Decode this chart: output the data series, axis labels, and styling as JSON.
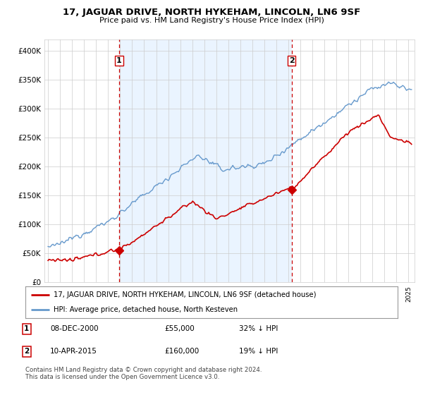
{
  "title": "17, JAGUAR DRIVE, NORTH HYKEHAM, LINCOLN, LN6 9SF",
  "subtitle": "Price paid vs. HM Land Registry's House Price Index (HPI)",
  "legend_line1": "17, JAGUAR DRIVE, NORTH HYKEHAM, LINCOLN, LN6 9SF (detached house)",
  "legend_line2": "HPI: Average price, detached house, North Kesteven",
  "annotation1": {
    "label": "1",
    "date": "08-DEC-2000",
    "price": "£55,000",
    "pct": "32% ↓ HPI"
  },
  "annotation2": {
    "label": "2",
    "date": "10-APR-2015",
    "price": "£160,000",
    "pct": "19% ↓ HPI"
  },
  "footer": "Contains HM Land Registry data © Crown copyright and database right 2024.\nThis data is licensed under the Open Government Licence v3.0.",
  "ylim": [
    0,
    420000
  ],
  "yticks": [
    0,
    50000,
    100000,
    150000,
    200000,
    250000,
    300000,
    350000,
    400000
  ],
  "property_color": "#cc0000",
  "hpi_color": "#6699cc",
  "hpi_fill_color": "#ddeeff",
  "vline_color": "#cc0000",
  "point1_year": 2000.92,
  "point1_value": 55000,
  "point2_year": 2015.27,
  "point2_value": 160000,
  "background_color": "#ffffff",
  "grid_color": "#cccccc"
}
